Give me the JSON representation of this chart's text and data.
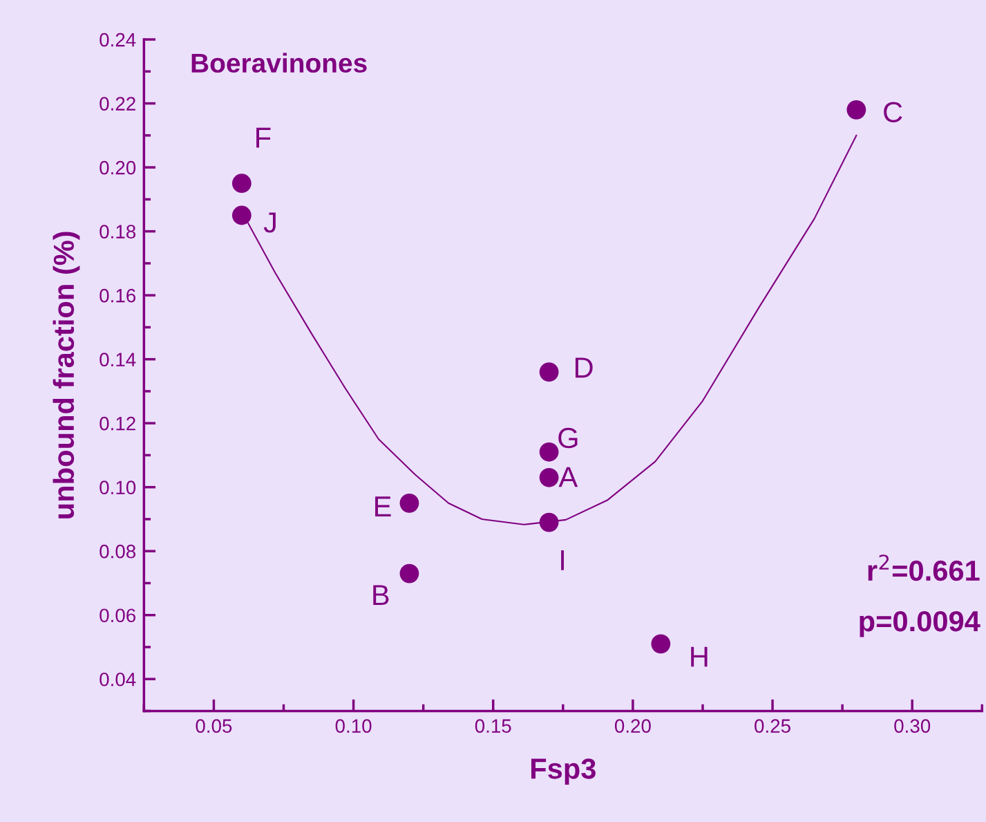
{
  "chart_data": {
    "type": "scatter",
    "title": "Boeravinones",
    "xlabel": "Fsp3",
    "ylabel": "unbound fraction (%)",
    "xlim": [
      0.025,
      0.325
    ],
    "xticks": [
      {
        "value": 0.05,
        "label": "0.05"
      },
      {
        "value": 0.1,
        "label": "0.10"
      },
      {
        "value": 0.15,
        "label": "0.15"
      },
      {
        "value": 0.2,
        "label": "0.20"
      },
      {
        "value": 0.25,
        "label": "0.25"
      },
      {
        "value": 0.3,
        "label": "0.30"
      }
    ],
    "ylim": [
      0.03,
      0.24
    ],
    "yticks": [
      {
        "value": 0.04,
        "label": "0.04"
      },
      {
        "value": 0.06,
        "label": "0.06"
      },
      {
        "value": 0.08,
        "label": "0.08"
      },
      {
        "value": 0.1,
        "label": "0.10"
      },
      {
        "value": 0.12,
        "label": "0.12"
      },
      {
        "value": 0.14,
        "label": "0.14"
      },
      {
        "value": 0.16,
        "label": "0.16"
      },
      {
        "value": 0.18,
        "label": "0.18"
      },
      {
        "value": 0.2,
        "label": "0.20"
      },
      {
        "value": 0.22,
        "label": "0.22"
      },
      {
        "value": 0.24,
        "label": "0.24"
      }
    ],
    "marker": "circle",
    "grid": false,
    "legend": false,
    "series": [
      {
        "type": "scatter",
        "color": "#800080",
        "x": [
          0.06,
          0.06,
          0.28,
          0.17,
          0.17,
          0.17,
          0.17,
          0.12,
          0.12,
          0.21
        ],
        "values": [
          0.195,
          0.185,
          0.218,
          0.136,
          0.111,
          0.103,
          0.089,
          0.095,
          0.073,
          0.051
        ]
      },
      {
        "type": "line",
        "color": "#800080",
        "marker": "none",
        "line_style": "solid",
        "x": [
          0.062,
          0.072,
          0.085,
          0.097,
          0.109,
          0.122,
          0.134,
          0.146,
          0.161,
          0.176,
          0.191,
          0.208,
          0.225,
          0.245,
          0.265,
          0.28
        ],
        "values": [
          0.183,
          0.167,
          0.148,
          0.131,
          0.115,
          0.104,
          0.095,
          0.09,
          0.0883,
          0.0898,
          0.096,
          0.108,
          0.127,
          0.156,
          0.184,
          0.21
        ]
      }
    ],
    "annotations": [
      {
        "text": "F",
        "x": 0.06,
        "y": 0.195
      },
      {
        "text": "J",
        "x": 0.06,
        "y": 0.185
      },
      {
        "text": "C",
        "x": 0.28,
        "y": 0.218
      },
      {
        "text": "D",
        "x": 0.17,
        "y": 0.136
      },
      {
        "text": "G",
        "x": 0.17,
        "y": 0.111
      },
      {
        "text": "A",
        "x": 0.17,
        "y": 0.103
      },
      {
        "text": "I",
        "x": 0.17,
        "y": 0.089
      },
      {
        "text": "E",
        "x": 0.12,
        "y": 0.095
      },
      {
        "text": "B",
        "x": 0.12,
        "y": 0.073
      },
      {
        "text": "H",
        "x": 0.21,
        "y": 0.051
      },
      "r$^{2}$=0.661",
      "p=0.0094"
    ]
  }
}
